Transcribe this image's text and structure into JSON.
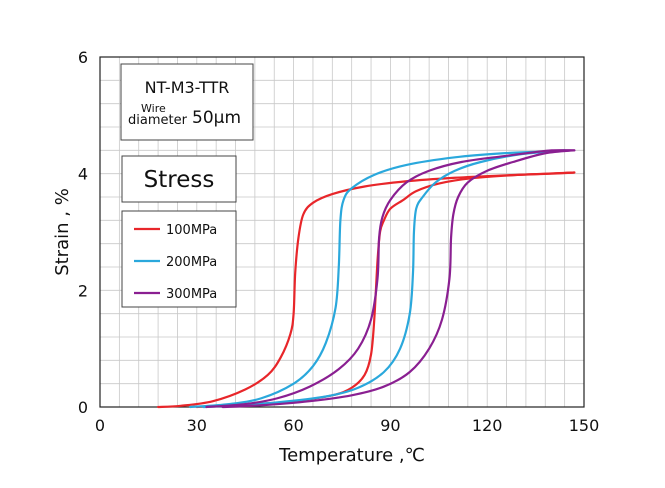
{
  "chart_data": {
    "type": "line",
    "xlabel": "Temperature ,℃",
    "ylabel": "Strain , %",
    "xlim": [
      0,
      150
    ],
    "ylim": [
      0,
      6
    ],
    "xticks": [
      "0",
      "30",
      "60",
      "90",
      "120",
      "150"
    ],
    "yticks": [
      "0",
      "2",
      "4",
      "6"
    ],
    "grid": true,
    "info_box": {
      "line1": "NT-M3-TTR",
      "line2_super": "Wire",
      "line2_sub": "diameter",
      "line2_value": "50μm"
    },
    "stress_box": {
      "label": "Stress"
    },
    "legend_position": "left",
    "series": [
      {
        "name": "100MPa",
        "color": "#e8262a",
        "heating": [
          [
            18,
            0.0
          ],
          [
            25,
            0.02
          ],
          [
            35,
            0.1
          ],
          [
            45,
            0.3
          ],
          [
            52,
            0.55
          ],
          [
            56,
            0.85
          ],
          [
            59,
            1.25
          ],
          [
            60,
            1.6
          ],
          [
            60.5,
            2.3
          ],
          [
            61.5,
            2.9
          ],
          [
            63,
            3.3
          ],
          [
            66,
            3.5
          ],
          [
            72,
            3.65
          ],
          [
            82,
            3.78
          ],
          [
            95,
            3.87
          ],
          [
            110,
            3.93
          ],
          [
            125,
            3.97
          ],
          [
            140,
            4.0
          ],
          [
            147,
            4.02
          ]
        ],
        "cooling": [
          [
            147,
            4.02
          ],
          [
            130,
            3.98
          ],
          [
            115,
            3.92
          ],
          [
            105,
            3.83
          ],
          [
            98,
            3.7
          ],
          [
            94,
            3.55
          ],
          [
            90,
            3.4
          ],
          [
            88,
            3.2
          ],
          [
            86.8,
            3.0
          ],
          [
            86,
            2.5
          ],
          [
            85,
            1.5
          ],
          [
            84,
            0.9
          ],
          [
            82,
            0.55
          ],
          [
            78,
            0.33
          ],
          [
            72,
            0.2
          ],
          [
            60,
            0.1
          ],
          [
            45,
            0.04
          ],
          [
            30,
            0.0
          ]
        ]
      },
      {
        "name": "200MPa",
        "color": "#2aa8dc",
        "heating": [
          [
            28,
            0.0
          ],
          [
            40,
            0.05
          ],
          [
            50,
            0.15
          ],
          [
            60,
            0.4
          ],
          [
            66,
            0.7
          ],
          [
            70,
            1.1
          ],
          [
            73,
            1.7
          ],
          [
            74,
            2.4
          ],
          [
            74.5,
            3.2
          ],
          [
            75.5,
            3.55
          ],
          [
            78,
            3.75
          ],
          [
            85,
            3.98
          ],
          [
            95,
            4.15
          ],
          [
            110,
            4.28
          ],
          [
            125,
            4.35
          ],
          [
            138,
            4.38
          ],
          [
            144,
            4.4
          ]
        ],
        "cooling": [
          [
            144,
            4.4
          ],
          [
            130,
            4.33
          ],
          [
            118,
            4.2
          ],
          [
            110,
            4.05
          ],
          [
            104,
            3.85
          ],
          [
            100,
            3.6
          ],
          [
            98,
            3.4
          ],
          [
            97.3,
            3.0
          ],
          [
            97,
            2.3
          ],
          [
            96,
            1.6
          ],
          [
            93,
            1.0
          ],
          [
            88,
            0.6
          ],
          [
            80,
            0.33
          ],
          [
            70,
            0.18
          ],
          [
            55,
            0.08
          ],
          [
            40,
            0.02
          ],
          [
            32,
            0.0
          ]
        ]
      },
      {
        "name": "300MPa",
        "color": "#8a1f91",
        "heating": [
          [
            33,
            0.0
          ],
          [
            45,
            0.05
          ],
          [
            55,
            0.15
          ],
          [
            65,
            0.35
          ],
          [
            74,
            0.65
          ],
          [
            80,
            1.0
          ],
          [
            84,
            1.5
          ],
          [
            86,
            2.2
          ],
          [
            86.5,
            2.9
          ],
          [
            87.5,
            3.25
          ],
          [
            90,
            3.55
          ],
          [
            95,
            3.85
          ],
          [
            102,
            4.05
          ],
          [
            112,
            4.2
          ],
          [
            125,
            4.3
          ],
          [
            135,
            4.37
          ],
          [
            140,
            4.4
          ],
          [
            147,
            4.4
          ]
        ],
        "cooling": [
          [
            147,
            4.4
          ],
          [
            138,
            4.35
          ],
          [
            128,
            4.2
          ],
          [
            120,
            4.05
          ],
          [
            114,
            3.85
          ],
          [
            111,
            3.6
          ],
          [
            109.5,
            3.3
          ],
          [
            108.8,
            2.9
          ],
          [
            108.3,
            2.2
          ],
          [
            106,
            1.5
          ],
          [
            102,
            1.0
          ],
          [
            96,
            0.6
          ],
          [
            88,
            0.35
          ],
          [
            78,
            0.2
          ],
          [
            65,
            0.1
          ],
          [
            50,
            0.03
          ],
          [
            38,
            0.0
          ]
        ]
      }
    ]
  }
}
